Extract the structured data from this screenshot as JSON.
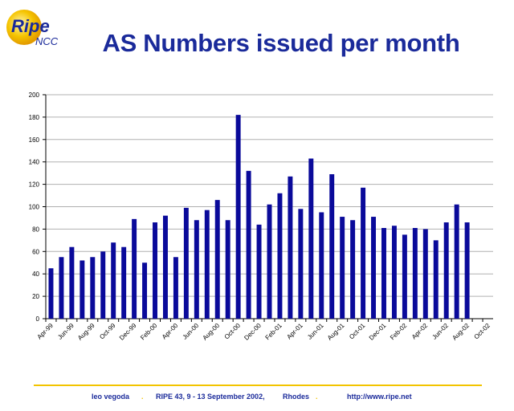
{
  "logo": {
    "text_main": "Ripe",
    "text_sub": "NCC"
  },
  "title": "AS Numbers issued per month",
  "footer": {
    "presenter": "leo vegoda",
    "event": "RIPE 43, 9 - 13 September 2002,",
    "location": "Rhodes",
    "url": "http://www.ripe.net",
    "separator": "."
  },
  "colors": {
    "bar": "#0a0a9a",
    "title": "#1a2a9a",
    "rule": "#f2c400",
    "grid": "#b0b0b0"
  },
  "chart_data": {
    "type": "bar",
    "categories": [
      "Apr-99",
      "May-99",
      "Jun-99",
      "Jul-99",
      "Aug-99",
      "Sep-99",
      "Oct-99",
      "Nov-99",
      "Dec-99",
      "Jan-00",
      "Feb-00",
      "Mar-00",
      "Apr-00",
      "May-00",
      "Jun-00",
      "Jul-00",
      "Aug-00",
      "Sep-00",
      "Oct-00",
      "Nov-00",
      "Dec-00",
      "Jan-01",
      "Feb-01",
      "Mar-01",
      "Apr-01",
      "May-01",
      "Jun-01",
      "Jul-01",
      "Aug-01",
      "Sep-01",
      "Oct-01",
      "Nov-01",
      "Dec-01",
      "Jan-02",
      "Feb-02",
      "Mar-02",
      "Apr-02",
      "May-02",
      "Jun-02",
      "Jul-02",
      "Aug-02",
      "Sep-02",
      "Oct-02"
    ],
    "tick_labels": [
      "Apr-99",
      "Jun-99",
      "Aug-99",
      "Oct-99",
      "Dec-99",
      "Feb-00",
      "Apr-00",
      "Jun-00",
      "Aug-00",
      "Oct-00",
      "Dec-00",
      "Feb-01",
      "Apr-01",
      "Jun-01",
      "Aug-01",
      "Oct-01",
      "Dec-01",
      "Feb-02",
      "Apr-02",
      "Jun-02",
      "Aug-02",
      "Oct-02"
    ],
    "values": [
      45,
      55,
      64,
      52,
      55,
      60,
      68,
      64,
      89,
      50,
      86,
      92,
      55,
      99,
      88,
      97,
      106,
      88,
      182,
      132,
      84,
      102,
      112,
      127,
      98,
      143,
      95,
      129,
      91,
      88,
      117,
      91,
      81,
      83,
      75,
      81,
      80,
      70,
      86,
      102,
      86,
      null,
      null
    ],
    "ylim": [
      0,
      200
    ],
    "yticks": [
      0,
      20,
      40,
      60,
      80,
      100,
      120,
      140,
      160,
      180,
      200
    ],
    "title": "",
    "xlabel": "",
    "ylabel": "",
    "grid": true,
    "legend": "none"
  }
}
